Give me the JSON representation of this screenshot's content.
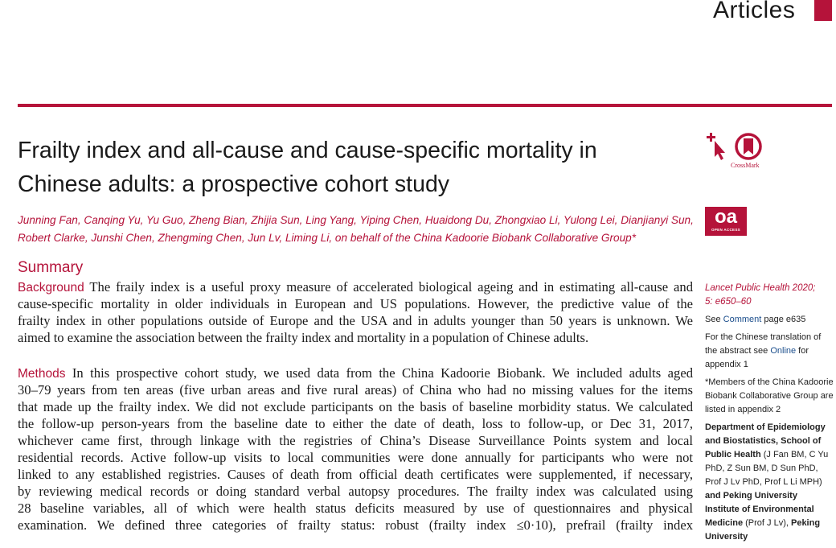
{
  "header": {
    "section": "Articles",
    "accent_color": "#b5133a"
  },
  "article": {
    "title_lines": [
      "Frailty index and all-cause and cause-specific mortality in",
      "Chinese adults: a prospective cohort study"
    ],
    "author_lines": [
      "Junning Fan, Canqing Yu, Yu Guo, Zheng Bian, Zhijia Sun, Ling Yang, Yiping Chen, Huaidong Du, Zhongxiao Li, Yulong Lei, Dianjianyi Sun,",
      "Robert Clarke, Junshi Chen, Zhengming Chen, Jun Lv, Liming Li, on behalf of the China Kadoorie Biobank Collaborative Group*"
    ],
    "summary_heading": "Summary",
    "background": {
      "label": "Background",
      "lines": [
        "The fraily index is a useful proxy measure of accelerated biological ageing and in estimating all-cause and",
        "cause-specific mortality in older individuals in European and US populations. However, the predictive value of the",
        "frailty index in other populations outside of Europe and the USA and in adults younger than 50 years is unknown. We",
        "aimed to examine the association between the frailty index and mortality in a population of Chinese adults."
      ]
    },
    "methods": {
      "label": "Methods",
      "lines": [
        "In this prospective cohort study, we used data from the China Kadoorie Biobank. We included adults aged",
        "30–79 years from ten areas (five urban areas and five rural areas) of China who had no missing values for the items",
        "that made up the frailty index. We did not exclude participants on the basis of baseline morbidity status. We calculated",
        "the follow-up person-years from the baseline date to either the date of death, loss to follow-up, or Dec 31, 2017,",
        "whichever came first, through linkage with the registries of China’s Disease Surveillance Points system and local",
        "residential records. Active follow-up visits to local communities were done annually for participants who were not",
        "linked to any established registries. Causes of death from official death certificates were supplemented, if necessary,",
        "by reviewing medical records or doing standard verbal autopsy procedures. The frailty index was calculated using",
        "28 baseline variables, all of which were health status deficits measured by use of questionnaires and physical",
        "examination. We defined three categories of frailty status: robust (frailty index ≤0·10), prefrail (frailty index"
      ]
    }
  },
  "badges": {
    "crossmark_label": "CrossMark",
    "oa_big": "oa",
    "oa_small": "OPEN ACCESS"
  },
  "sidebar": {
    "journal_line1": "Lancet Public Health 2020;",
    "journal_line2": "5: e650–60",
    "comment_pre": "See ",
    "comment_link": "Comment",
    "comment_post": " page e635",
    "translation_pre": "For the Chinese translation of the abstract see ",
    "translation_link": "Online",
    "translation_post": " for appendix 1",
    "members_note": "*Members of the China Kadoorie Biobank Collaborative Group are listed in appendix 2",
    "aff1_bold": "Department of Epidemiology and Biostatistics, School of Public Health",
    "aff1_people": " (J Fan BM, C Yu PhD, Z Sun BM, D Sun PhD, Prof J Lv PhD, Prof L Li MPH) ",
    "aff_and": "and",
    "aff2_bold": " Peking University Institute of Environmental Medicine",
    "aff2_people": " (Prof J Lv), ",
    "aff3_bold": "Peking University"
  }
}
